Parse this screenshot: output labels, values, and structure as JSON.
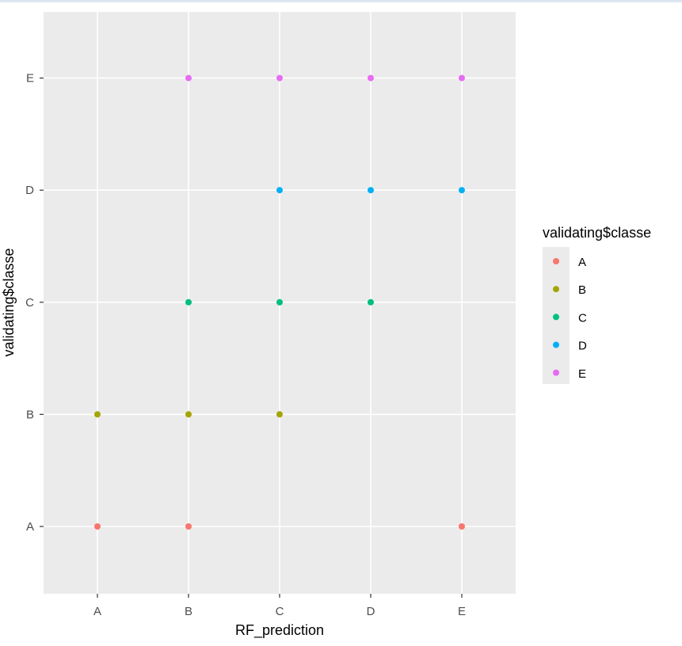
{
  "chart_data": {
    "type": "scatter",
    "xlabel": "RF_prediction",
    "ylabel": "validating$classe",
    "x_categories": [
      "A",
      "B",
      "C",
      "D",
      "E"
    ],
    "y_categories": [
      "A",
      "B",
      "C",
      "D",
      "E"
    ],
    "grid": true,
    "legend": {
      "title": "validating$classe",
      "position": "right",
      "entries": [
        "A",
        "B",
        "C",
        "D",
        "E"
      ]
    },
    "colors": {
      "A": "#F8766D",
      "B": "#A3A500",
      "C": "#00BF7D",
      "D": "#00B0F6",
      "E": "#E76BF3"
    },
    "points": [
      {
        "x": "A",
        "y": "A",
        "group": "A"
      },
      {
        "x": "B",
        "y": "A",
        "group": "A"
      },
      {
        "x": "E",
        "y": "A",
        "group": "A"
      },
      {
        "x": "A",
        "y": "B",
        "group": "B"
      },
      {
        "x": "B",
        "y": "B",
        "group": "B"
      },
      {
        "x": "C",
        "y": "B",
        "group": "B"
      },
      {
        "x": "B",
        "y": "C",
        "group": "C"
      },
      {
        "x": "C",
        "y": "C",
        "group": "C"
      },
      {
        "x": "D",
        "y": "C",
        "group": "C"
      },
      {
        "x": "C",
        "y": "D",
        "group": "D"
      },
      {
        "x": "D",
        "y": "D",
        "group": "D"
      },
      {
        "x": "E",
        "y": "D",
        "group": "D"
      },
      {
        "x": "B",
        "y": "E",
        "group": "E"
      },
      {
        "x": "C",
        "y": "E",
        "group": "E"
      },
      {
        "x": "D",
        "y": "E",
        "group": "E"
      },
      {
        "x": "E",
        "y": "E",
        "group": "E"
      }
    ]
  }
}
